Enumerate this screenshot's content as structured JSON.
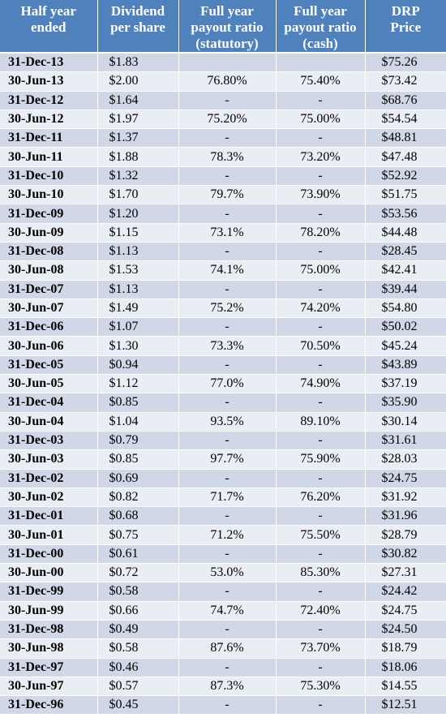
{
  "headers": {
    "period": "Half year\nended",
    "dividend": "Dividend\nper share",
    "ratio_statutory": "Full year\npayout ratio\n(statutory)",
    "ratio_cash": "Full year\npayout ratio\n(cash)",
    "drp": "DRP\nPrice"
  },
  "rows": [
    {
      "period": "31-Dec-13",
      "dividend": "$1.83",
      "ratio_statutory": "",
      "ratio_cash": "",
      "drp": "$75.26"
    },
    {
      "period": "30-Jun-13",
      "dividend": "$2.00",
      "ratio_statutory": "76.80%",
      "ratio_cash": "75.40%",
      "drp": "$73.42"
    },
    {
      "period": "31-Dec-12",
      "dividend": "$1.64",
      "ratio_statutory": "-",
      "ratio_cash": "-",
      "drp": "$68.76"
    },
    {
      "period": "30-Jun-12",
      "dividend": "$1.97",
      "ratio_statutory": "75.20%",
      "ratio_cash": "75.00%",
      "drp": "$54.54"
    },
    {
      "period": "31-Dec-11",
      "dividend": "$1.37",
      "ratio_statutory": "-",
      "ratio_cash": "-",
      "drp": "$48.81"
    },
    {
      "period": "30-Jun-11",
      "dividend": "$1.88",
      "ratio_statutory": "78.3%",
      "ratio_cash": "73.20%",
      "drp": "$47.48"
    },
    {
      "period": "31-Dec-10",
      "dividend": "$1.32",
      "ratio_statutory": "-",
      "ratio_cash": "-",
      "drp": "$52.92"
    },
    {
      "period": "30-Jun-10",
      "dividend": "$1.70",
      "ratio_statutory": "79.7%",
      "ratio_cash": "73.90%",
      "drp": "$51.75"
    },
    {
      "period": "31-Dec-09",
      "dividend": "$1.20",
      "ratio_statutory": "-",
      "ratio_cash": "-",
      "drp": "$53.56"
    },
    {
      "period": "30-Jun-09",
      "dividend": "$1.15",
      "ratio_statutory": "73.1%",
      "ratio_cash": "78.20%",
      "drp": "$44.48"
    },
    {
      "period": "31-Dec-08",
      "dividend": "$1.13",
      "ratio_statutory": "-",
      "ratio_cash": "-",
      "drp": "$28.45"
    },
    {
      "period": "30-Jun-08",
      "dividend": "$1.53",
      "ratio_statutory": "74.1%",
      "ratio_cash": "75.00%",
      "drp": "$42.41"
    },
    {
      "period": "31-Dec-07",
      "dividend": "$1.13",
      "ratio_statutory": "-",
      "ratio_cash": "-",
      "drp": "$39.44"
    },
    {
      "period": "30-Jun-07",
      "dividend": "$1.49",
      "ratio_statutory": "75.2%",
      "ratio_cash": "74.20%",
      "drp": "$54.80"
    },
    {
      "period": "31-Dec-06",
      "dividend": "$1.07",
      "ratio_statutory": "-",
      "ratio_cash": "-",
      "drp": "$50.02"
    },
    {
      "period": "30-Jun-06",
      "dividend": "$1.30",
      "ratio_statutory": "73.3%",
      "ratio_cash": "70.50%",
      "drp": "$45.24"
    },
    {
      "period": "31-Dec-05",
      "dividend": "$0.94",
      "ratio_statutory": "-",
      "ratio_cash": "-",
      "drp": "$43.89"
    },
    {
      "period": "30-Jun-05",
      "dividend": "$1.12",
      "ratio_statutory": "77.0%",
      "ratio_cash": "74.90%",
      "drp": "$37.19"
    },
    {
      "period": "31-Dec-04",
      "dividend": "$0.85",
      "ratio_statutory": "-",
      "ratio_cash": "-",
      "drp": "$35.90"
    },
    {
      "period": "30-Jun-04",
      "dividend": "$1.04",
      "ratio_statutory": "93.5%",
      "ratio_cash": "89.10%",
      "drp": "$30.14"
    },
    {
      "period": "31-Dec-03",
      "dividend": "$0.79",
      "ratio_statutory": "-",
      "ratio_cash": "-",
      "drp": "$31.61"
    },
    {
      "period": "30-Jun-03",
      "dividend": "$0.85",
      "ratio_statutory": "97.7%",
      "ratio_cash": "75.90%",
      "drp": "$28.03"
    },
    {
      "period": "31-Dec-02",
      "dividend": "$0.69",
      "ratio_statutory": "-",
      "ratio_cash": "-",
      "drp": "$24.75"
    },
    {
      "period": "30-Jun-02",
      "dividend": "$0.82",
      "ratio_statutory": "71.7%",
      "ratio_cash": "76.20%",
      "drp": "$31.92"
    },
    {
      "period": "31-Dec-01",
      "dividend": "$0.68",
      "ratio_statutory": "-",
      "ratio_cash": "-",
      "drp": "$31.96"
    },
    {
      "period": "30-Jun-01",
      "dividend": "$0.75",
      "ratio_statutory": "71.2%",
      "ratio_cash": "75.50%",
      "drp": "$28.79"
    },
    {
      "period": "31-Dec-00",
      "dividend": "$0.61",
      "ratio_statutory": "-",
      "ratio_cash": "-",
      "drp": "$30.82"
    },
    {
      "period": "30-Jun-00",
      "dividend": "$0.72",
      "ratio_statutory": "53.0%",
      "ratio_cash": "85.30%",
      "drp": "$27.31"
    },
    {
      "period": "31-Dec-99",
      "dividend": "$0.58",
      "ratio_statutory": "-",
      "ratio_cash": "-",
      "drp": "$24.42"
    },
    {
      "period": "30-Jun-99",
      "dividend": "$0.66",
      "ratio_statutory": "74.7%",
      "ratio_cash": "72.40%",
      "drp": "$24.75"
    },
    {
      "period": "31-Dec-98",
      "dividend": "$0.49",
      "ratio_statutory": "-",
      "ratio_cash": "-",
      "drp": "$24.50"
    },
    {
      "period": "30-Jun-98",
      "dividend": "$0.58",
      "ratio_statutory": "87.6%",
      "ratio_cash": "73.70%",
      "drp": "$18.79"
    },
    {
      "period": "31-Dec-97",
      "dividend": "$0.46",
      "ratio_statutory": "-",
      "ratio_cash": "-",
      "drp": "$18.06"
    },
    {
      "period": "30-Jun-97",
      "dividend": "$0.57",
      "ratio_statutory": "87.3%",
      "ratio_cash": "75.30%",
      "drp": "$14.55"
    },
    {
      "period": "31-Dec-96",
      "dividend": "$0.45",
      "ratio_statutory": "-",
      "ratio_cash": "-",
      "drp": "$12.51"
    }
  ],
  "colors": {
    "header_bg": "#4f81bd",
    "header_text": "#ffffff",
    "row_odd": "#d0d8e8",
    "row_even": "#e9edf4"
  }
}
